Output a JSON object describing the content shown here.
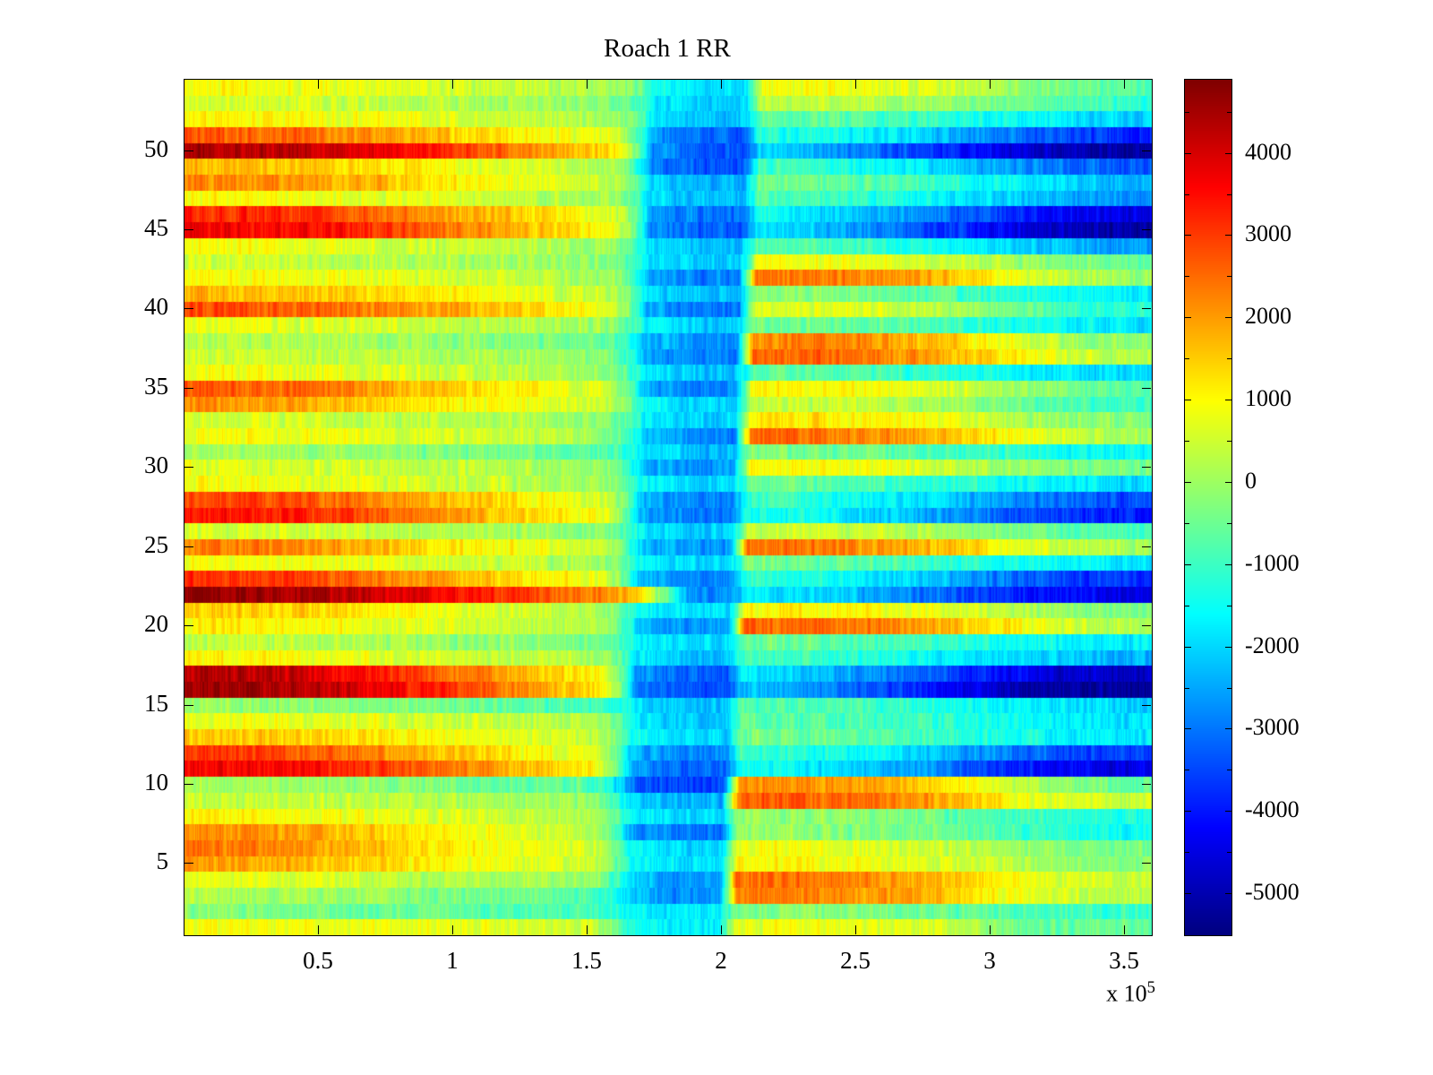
{
  "chart_data": {
    "type": "heatmap",
    "title": "Roach 1 RR",
    "colormap": "jet",
    "value_range": [
      -5500,
      4900
    ],
    "x_range_1e5": [
      0,
      3.6
    ],
    "x_tick_values_1e5": [
      0.5,
      1,
      1.5,
      2,
      2.5,
      3,
      3.5
    ],
    "x_tick_labels": [
      "0.5",
      "1",
      "1.5",
      "2",
      "2.5",
      "3",
      "3.5"
    ],
    "x_axis_multiplier_label": {
      "prefix": "x 10",
      "exponent": "5"
    },
    "y_range": [
      0.5,
      54.5
    ],
    "y_tick_values": [
      5,
      10,
      15,
      20,
      25,
      30,
      35,
      40,
      45,
      50
    ],
    "y_tick_labels": [
      "5",
      "10",
      "15",
      "20",
      "25",
      "30",
      "35",
      "40",
      "45",
      "50"
    ],
    "grid": false,
    "legend": "colorbar-right",
    "colorbar": {
      "tick_values": [
        4000,
        3000,
        2000,
        1000,
        0,
        -1000,
        -2000,
        -3000,
        -4000,
        -5000
      ],
      "tick_labels": [
        "4000",
        "3000",
        "2000",
        "1000",
        "0",
        "-1000",
        "-2000",
        "-3000",
        "-4000",
        "-5000"
      ],
      "minor_tick_step": 500
    },
    "columns_x_centers_1e5": [
      0.1,
      0.3,
      0.5,
      0.7,
      0.9,
      1.1,
      1.3,
      1.5,
      1.7,
      1.9,
      2.1,
      2.3,
      2.5,
      2.7,
      2.9,
      3.1,
      3.3,
      3.5
    ],
    "rows_order": "bottom-to-top",
    "matrix": [
      [
        900,
        850,
        800,
        780,
        740,
        700,
        620,
        520,
        -1300,
        -1800,
        750,
        820,
        800,
        700,
        550,
        -300,
        -700,
        -500
      ],
      [
        -200,
        -300,
        -400,
        -480,
        -560,
        -650,
        -750,
        -900,
        -1500,
        -1800,
        -350,
        -250,
        -300,
        -400,
        -500,
        -750,
        -900,
        -1000
      ],
      [
        200,
        100,
        0,
        -100,
        -200,
        -300,
        -450,
        -650,
        -2200,
        -2800,
        2250,
        2350,
        2200,
        2000,
        1500,
        900,
        500,
        300
      ],
      [
        700,
        620,
        540,
        440,
        340,
        240,
        120,
        0,
        -2000,
        -2600,
        2450,
        2500,
        2300,
        2000,
        1600,
        1000,
        600,
        400
      ],
      [
        2050,
        1950,
        1750,
        1450,
        1150,
        900,
        700,
        500,
        -1400,
        -1900,
        950,
        1000,
        900,
        800,
        600,
        300,
        0,
        -200
      ],
      [
        2400,
        2300,
        2100,
        1750,
        1350,
        1050,
        820,
        600,
        -1500,
        -2000,
        820,
        830,
        720,
        600,
        400,
        100,
        -200,
        -400
      ],
      [
        2150,
        2050,
        1850,
        1550,
        1250,
        950,
        700,
        420,
        -2600,
        -3000,
        0,
        -100,
        -250,
        -350,
        -550,
        -900,
        -1200,
        -1400
      ],
      [
        1100,
        1020,
        940,
        840,
        720,
        600,
        420,
        220,
        -1600,
        -2000,
        -200,
        -120,
        -220,
        -420,
        -620,
        -900,
        -1100,
        -1300
      ],
      [
        500,
        430,
        360,
        300,
        220,
        140,
        40,
        -80,
        -2000,
        -2400,
        2650,
        2700,
        2500,
        2200,
        1700,
        1100,
        700,
        400
      ],
      [
        100,
        20,
        -60,
        -160,
        -280,
        -400,
        -520,
        -700,
        -3200,
        -3600,
        2100,
        2200,
        2000,
        1700,
        1200,
        500,
        -200,
        -600
      ],
      [
        3650,
        3550,
        3350,
        3050,
        2650,
        2200,
        1700,
        1200,
        -2600,
        -3200,
        -1400,
        -1650,
        -1950,
        -2450,
        -3050,
        -3800,
        -4300,
        -4500
      ],
      [
        3050,
        2950,
        2750,
        2350,
        1850,
        1450,
        1050,
        720,
        -2400,
        -2900,
        -1000,
        -1200,
        -1500,
        -1900,
        -2400,
        -3000,
        -3400,
        -3600
      ],
      [
        1650,
        1550,
        1450,
        1250,
        1050,
        820,
        620,
        420,
        -1500,
        -2000,
        -300,
        -400,
        -600,
        -800,
        -1100,
        -1400,
        -1600,
        -1800
      ],
      [
        900,
        820,
        740,
        640,
        540,
        420,
        300,
        120,
        -1700,
        -2100,
        -600,
        -700,
        -820,
        -1000,
        -1250,
        -1500,
        -1700,
        -1900
      ],
      [
        0,
        -80,
        -180,
        -300,
        -420,
        -520,
        -640,
        -820,
        -1800,
        -2200,
        -700,
        -800,
        -920,
        -1100,
        -1350,
        -1600,
        -1800,
        -2000
      ],
      [
        4650,
        4550,
        4250,
        3850,
        3350,
        2750,
        2100,
        1500,
        -2800,
        -3400,
        -2200,
        -2600,
        -3100,
        -3700,
        -4300,
        -4900,
        -5200,
        -5300
      ],
      [
        4350,
        4250,
        3950,
        3450,
        2850,
        2250,
        1700,
        1200,
        -2600,
        -3200,
        -1800,
        -2100,
        -2500,
        -3000,
        -3600,
        -4200,
        -4600,
        -4800
      ],
      [
        1000,
        920,
        840,
        740,
        620,
        500,
        320,
        120,
        -1800,
        -2200,
        -900,
        -1000,
        -1200,
        -1400,
        -1700,
        -2000,
        -2200,
        -2400
      ],
      [
        400,
        320,
        240,
        140,
        40,
        -60,
        -180,
        -380,
        -1600,
        -2000,
        -500,
        -600,
        -720,
        -900,
        -1120,
        -1400,
        -1600,
        -1800
      ],
      [
        1100,
        1020,
        940,
        840,
        720,
        600,
        420,
        220,
        -2200,
        -2700,
        2550,
        2600,
        2400,
        2100,
        1600,
        1000,
        500,
        200
      ],
      [
        1550,
        1450,
        1350,
        1150,
        950,
        720,
        520,
        320,
        -1500,
        -1900,
        1050,
        1100,
        1000,
        800,
        600,
        200,
        -100,
        -300
      ],
      [
        4750,
        4650,
        4450,
        4150,
        3750,
        3350,
        2850,
        2350,
        1500,
        -2800,
        -1600,
        -1900,
        -2350,
        -2850,
        -3350,
        -3900,
        -4200,
        -4400
      ],
      [
        3150,
        3050,
        2850,
        2450,
        2050,
        1650,
        1250,
        820,
        -2300,
        -2800,
        -1100,
        -1300,
        -1600,
        -2000,
        -2500,
        -3100,
        -3500,
        -3700
      ],
      [
        1000,
        920,
        840,
        740,
        620,
        500,
        320,
        120,
        -1600,
        -2000,
        -400,
        -500,
        -700,
        -900,
        -1150,
        -1400,
        -1600,
        -1800
      ],
      [
        2350,
        2250,
        2050,
        1750,
        1350,
        1050,
        820,
        520,
        -2100,
        -2600,
        2350,
        2400,
        2200,
        1900,
        1400,
        800,
        400,
        100
      ],
      [
        600,
        520,
        440,
        340,
        240,
        140,
        20,
        -180,
        -1700,
        -2100,
        420,
        500,
        420,
        220,
        0,
        -400,
        -700,
        -900
      ],
      [
        3450,
        3350,
        3150,
        2750,
        2250,
        1820,
        1350,
        920,
        -2500,
        -3000,
        -1300,
        -1500,
        -1800,
        -2250,
        -2750,
        -3300,
        -3700,
        -3900
      ],
      [
        2950,
        2850,
        2650,
        2250,
        1850,
        1450,
        1050,
        720,
        -2300,
        -2800,
        -900,
        -1100,
        -1400,
        -1800,
        -2250,
        -2800,
        -3200,
        -3400
      ],
      [
        900,
        820,
        740,
        640,
        520,
        400,
        220,
        20,
        -1600,
        -2000,
        -500,
        -600,
        -800,
        -1000,
        -1250,
        -1500,
        -1700,
        -1900
      ],
      [
        700,
        620,
        540,
        440,
        340,
        240,
        120,
        -80,
        -2200,
        -2700,
        950,
        1000,
        900,
        700,
        400,
        0,
        -300,
        -500
      ],
      [
        100,
        20,
        -60,
        -160,
        -280,
        -400,
        -520,
        -700,
        -1800,
        -2200,
        -300,
        -400,
        -520,
        -700,
        -920,
        -1200,
        -1400,
        -1600
      ],
      [
        1000,
        920,
        840,
        740,
        620,
        500,
        320,
        120,
        -2300,
        -2800,
        2450,
        2500,
        2300,
        2000,
        1500,
        900,
        400,
        100
      ],
      [
        600,
        520,
        440,
        360,
        300,
        220,
        120,
        -80,
        -1700,
        -2100,
        1150,
        1200,
        1100,
        900,
        600,
        200,
        -100,
        -300
      ],
      [
        2150,
        2050,
        1850,
        1450,
        1150,
        920,
        720,
        520,
        -1600,
        -2000,
        320,
        400,
        320,
        120,
        -100,
        -500,
        -800,
        -1000
      ],
      [
        2750,
        2650,
        2450,
        2050,
        1650,
        1250,
        920,
        620,
        -2400,
        -2900,
        1050,
        1100,
        1000,
        800,
        500,
        0,
        -400,
        -700
      ],
      [
        900,
        820,
        740,
        640,
        520,
        400,
        220,
        20,
        -1800,
        -2200,
        -600,
        -700,
        -820,
        -1020,
        -1300,
        -1600,
        -1800,
        -2000
      ],
      [
        500,
        420,
        340,
        300,
        220,
        140,
        20,
        -180,
        -2400,
        -2900,
        2550,
        2600,
        2400,
        2100,
        1600,
        1000,
        500,
        200
      ],
      [
        300,
        220,
        140,
        40,
        -60,
        -180,
        -300,
        -500,
        -2300,
        -2800,
        2250,
        2300,
        2100,
        1800,
        1300,
        600,
        100,
        -200
      ],
      [
        800,
        720,
        640,
        540,
        420,
        300,
        220,
        20,
        -1700,
        -2100,
        -400,
        -500,
        -620,
        -820,
        -1100,
        -1400,
        -1600,
        -1800
      ],
      [
        2850,
        2750,
        2550,
        2250,
        1950,
        1650,
        1250,
        820,
        -2500,
        -3000,
        620,
        700,
        600,
        400,
        0,
        -600,
        -1000,
        -1300
      ],
      [
        1750,
        1650,
        1550,
        1350,
        1150,
        920,
        720,
        420,
        -1900,
        -2300,
        -200,
        -300,
        -420,
        -620,
        -920,
        -1300,
        -1500,
        -1700
      ],
      [
        1000,
        920,
        840,
        740,
        620,
        500,
        320,
        120,
        -2400,
        -2900,
        2350,
        2400,
        2200,
        1900,
        1400,
        700,
        200,
        -100
      ],
      [
        500,
        420,
        340,
        240,
        220,
        140,
        20,
        -180,
        -1800,
        -2200,
        820,
        900,
        800,
        600,
        300,
        -100,
        -400,
        -600
      ],
      [
        900,
        820,
        740,
        640,
        520,
        400,
        220,
        20,
        -1900,
        -2300,
        -700,
        -800,
        -1000,
        -1300,
        -1700,
        -2100,
        -2400,
        -2600
      ],
      [
        3750,
        3650,
        3450,
        3050,
        2550,
        2050,
        1550,
        1050,
        -2700,
        -3300,
        -1800,
        -2200,
        -2700,
        -3300,
        -3900,
        -4500,
        -4900,
        -5100
      ],
      [
        3250,
        3150,
        2950,
        2550,
        2050,
        1650,
        1250,
        820,
        -2500,
        -3000,
        -1500,
        -1800,
        -2200,
        -2700,
        -3300,
        -3900,
        -4300,
        -4500
      ],
      [
        1000,
        920,
        840,
        740,
        620,
        420,
        220,
        20,
        -1900,
        -2300,
        -800,
        -900,
        -1100,
        -1400,
        -1800,
        -2200,
        -2500,
        -2700
      ],
      [
        2250,
        2150,
        1950,
        1650,
        1250,
        920,
        720,
        420,
        -2000,
        -2400,
        -400,
        -500,
        -700,
        -1000,
        -1400,
        -1800,
        -2100,
        -2300
      ],
      [
        1650,
        1550,
        1450,
        1250,
        1050,
        720,
        520,
        220,
        -2900,
        -3400,
        -900,
        -1100,
        -1400,
        -1800,
        -2300,
        -2800,
        -3100,
        -3300
      ],
      [
        4450,
        4350,
        4150,
        3750,
        3250,
        2650,
        2050,
        1450,
        -2800,
        -3400,
        -2000,
        -2400,
        -2900,
        -3500,
        -4100,
        -4700,
        -5000,
        -5200
      ],
      [
        2650,
        2550,
        2350,
        2050,
        1650,
        1250,
        920,
        620,
        -2600,
        -3100,
        -1200,
        -1400,
        -1700,
        -2100,
        -2600,
        -3200,
        -3600,
        -3800
      ],
      [
        1100,
        1020,
        940,
        840,
        620,
        500,
        320,
        120,
        -1800,
        -2200,
        -500,
        -600,
        -800,
        -1000,
        -1300,
        -1600,
        -1900,
        -2100
      ],
      [
        600,
        520,
        440,
        340,
        240,
        140,
        20,
        -180,
        -1700,
        -2100,
        320,
        400,
        320,
        120,
        -200,
        -600,
        -900,
        -1100
      ],
      [
        1000,
        920,
        840,
        740,
        620,
        500,
        320,
        120,
        -1500,
        -1900,
        820,
        900,
        800,
        600,
        300,
        -100,
        -400,
        -700
      ]
    ]
  }
}
